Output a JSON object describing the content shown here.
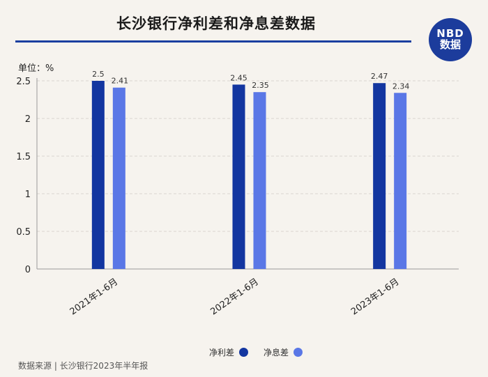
{
  "header": {
    "title": "长沙银行净利差和净息差数据",
    "logo_top": "NBD",
    "logo_bottom": "数据",
    "unit_label": "单位：%"
  },
  "footer": {
    "source": "数据来源 | 长沙银行2023年半年报"
  },
  "colors": {
    "series1": "#1336a0",
    "series2": "#5a77e6",
    "grid": "#d9d6d0",
    "axis": "#9a9a9a"
  },
  "chart_data": {
    "type": "bar",
    "title": "长沙银行净利差和净息差数据",
    "categories": [
      "2021年1-6月",
      "2022年1-6月",
      "2023年1-6月"
    ],
    "series": [
      {
        "name": "净利差",
        "values": [
          2.5,
          2.45,
          2.47
        ],
        "labels": [
          "2.5",
          "2.45",
          "2.47"
        ]
      },
      {
        "name": "净息差",
        "values": [
          2.41,
          2.35,
          2.34
        ],
        "labels": [
          "2.41",
          "2.35",
          "2.34"
        ]
      }
    ],
    "yticks": [
      0,
      0.5,
      1,
      1.5,
      2,
      2.5
    ],
    "ytick_labels": [
      "0",
      "0.5",
      "1",
      "1.5",
      "2",
      "2.5"
    ],
    "ylim": [
      0,
      2.5
    ],
    "grid": true,
    "legend": "bottom-center"
  }
}
